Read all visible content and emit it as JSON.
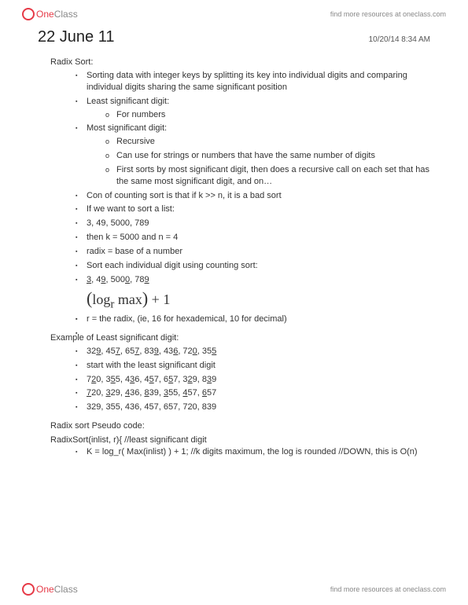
{
  "brand": {
    "one": "One",
    "class": "Class"
  },
  "header": {
    "link": "find more resources at oneclass.com"
  },
  "footer": {
    "link": "find more resources at oneclass.com"
  },
  "page": {
    "title": "22 June 11",
    "timestamp": "10/20/14 8:34 AM"
  },
  "sections": {
    "radix_sort_label": "Radix Sort:",
    "bullets1": [
      "Sorting data with integer keys by splitting its key into individual digits and comparing individual digits sharing the same significant position",
      "Least significant digit:",
      "Most significant digit:",
      "Con of counting sort is that if k >> n, it is a bad sort",
      "If we want to sort a list:",
      "3, 49, 5000, 789",
      "then k = 5000 and n = 4",
      "radix = base of a number",
      "Sort each individual digit using counting sort:"
    ],
    "lsd_sub": [
      "For numbers"
    ],
    "msd_sub": [
      "Recursive",
      "Can use for strings or numbers that have the same number of digits",
      "First sorts by most significant digit, then does a recursive call on each set that has the same most significant digit, and on…"
    ],
    "underlined_example": {
      "a": "3",
      "b": "9",
      "c": "0",
      "d": "9",
      "prefix_a": "",
      "prefix_b": "4",
      "prefix_c": "500",
      "prefix_d": "78",
      "sep": ", "
    },
    "formula": {
      "logr": "log",
      "sub": "r",
      "max": "max",
      "plus1": "+ 1"
    },
    "radix_note": "r = the radix, (ie, 16 for hexademical, 10 for decimal)",
    "example_label": "Example of Least significant digit:",
    "example_lines": [
      {
        "parts": [
          [
            "32",
            "9"
          ],
          [
            "45",
            "7"
          ],
          [
            "65",
            "7"
          ],
          [
            "83",
            "9"
          ],
          [
            "43",
            "6"
          ],
          [
            "72",
            "0"
          ],
          [
            "35",
            "5"
          ]
        ]
      },
      {
        "text": "start with the least significant digit"
      },
      {
        "parts": [
          [
            "7",
            "2",
            "0"
          ],
          [
            "3",
            "5",
            "5"
          ],
          [
            "4",
            "3",
            "6"
          ],
          [
            "4",
            "5",
            "7"
          ],
          [
            "6",
            "5",
            "7"
          ],
          [
            "3",
            "2",
            "9"
          ],
          [
            "8",
            "3",
            "9"
          ]
        ],
        "umid": true
      },
      {
        "parts": [
          [
            "",
            "7",
            "20"
          ],
          [
            "",
            "3",
            "29"
          ],
          [
            "",
            "4",
            "36"
          ],
          [
            "",
            "8",
            "39"
          ],
          [
            "",
            "3",
            "55"
          ],
          [
            "",
            "4",
            "57"
          ],
          [
            "",
            "6",
            "57"
          ]
        ],
        "ufirst": true
      },
      {
        "text": "329, 355, 436, 457, 657, 720, 839"
      }
    ],
    "pseudo_label": "Radix sort Pseudo code:",
    "pseudo_line": "RadixSort(inlist, r){ //least significant digit",
    "pseudo_bullet": "K = log_r( Max(inlist) ) + 1; //k digits maximum, the log is rounded //DOWN, this is O(n)"
  }
}
